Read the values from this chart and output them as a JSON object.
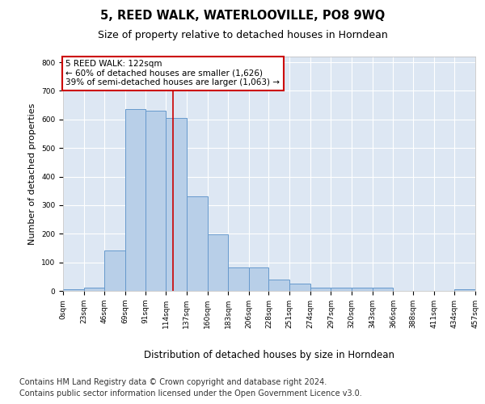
{
  "title": "5, REED WALK, WATERLOOVILLE, PO8 9WQ",
  "subtitle": "Size of property relative to detached houses in Horndean",
  "xlabel": "Distribution of detached houses by size in Horndean",
  "ylabel": "Number of detached properties",
  "bar_color": "#b8cfe8",
  "bar_edge_color": "#6699cc",
  "background_color": "#dde7f3",
  "grid_color": "#ffffff",
  "annotation_box_color": "#cc0000",
  "vline_color": "#cc0000",
  "annotation_line1": "5 REED WALK: 122sqm",
  "annotation_line2": "← 60% of detached houses are smaller (1,626)",
  "annotation_line3": "39% of semi-detached houses are larger (1,063) →",
  "property_size": 122,
  "bin_edges": [
    0,
    23,
    46,
    69,
    91,
    114,
    137,
    160,
    183,
    206,
    228,
    251,
    274,
    297,
    320,
    343,
    366,
    388,
    411,
    434,
    457
  ],
  "bin_heights": [
    5,
    10,
    140,
    635,
    630,
    605,
    330,
    198,
    83,
    83,
    40,
    25,
    12,
    12,
    10,
    10,
    0,
    0,
    0,
    5
  ],
  "ylim": [
    0,
    820
  ],
  "yticks": [
    0,
    100,
    200,
    300,
    400,
    500,
    600,
    700,
    800
  ],
  "footnote1": "Contains HM Land Registry data © Crown copyright and database right 2024.",
  "footnote2": "Contains public sector information licensed under the Open Government Licence v3.0.",
  "footnote_fontsize": 7,
  "title_fontsize": 10.5,
  "subtitle_fontsize": 9,
  "xlabel_fontsize": 8.5,
  "ylabel_fontsize": 8,
  "tick_fontsize": 6.5
}
